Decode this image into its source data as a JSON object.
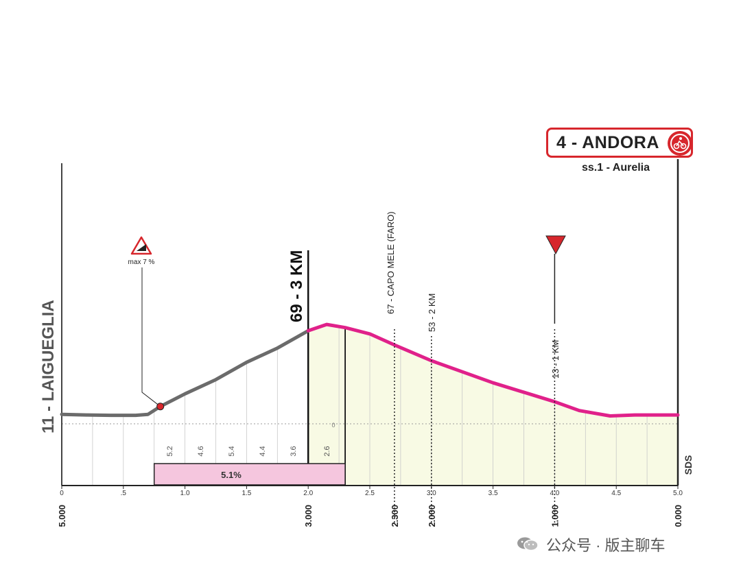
{
  "start_label": "11 - LAIGUEGLIA",
  "finish": {
    "label": "4 - ANDORA",
    "road": "ss.1 - Aurelia",
    "icon": "cyclist-finish-icon",
    "color": "#d7262c"
  },
  "warning": {
    "icon": "steep-climb-warning-icon",
    "label": "max 7 %"
  },
  "markers": {
    "km3": "69 - 3 KM",
    "capo_mele": "67 - CAPO MELE (FARO)",
    "km2": "53 - 2 KM",
    "km1": "13 - 1 KM"
  },
  "sea_level": "0",
  "logo": "SDS",
  "watermark": "公众号 · 版主聊车",
  "colors": {
    "profile_before": "#6b6b6b",
    "profile_final": "#e0218a",
    "fill_final": "#f8fae4",
    "grade_bar": "#f5c6de"
  },
  "chart_data": {
    "type": "area",
    "x_ticks": [
      "0",
      ".5",
      "1.0",
      "1.5",
      "2.0",
      "2.5",
      "3.0",
      "3.5",
      "4.0",
      "4.5",
      "5.0"
    ],
    "distance_to_go": [
      {
        "at": 0,
        "label": "5.000"
      },
      {
        "at": 2.0,
        "label": "3.000"
      },
      {
        "at": 2.7,
        "label": "2.300"
      },
      {
        "at": 3.0,
        "label": "2.000"
      },
      {
        "at": 4.0,
        "label": "1.000"
      },
      {
        "at": 5.0,
        "label": "0.000"
      }
    ],
    "segment_grades": [
      {
        "from": 0.75,
        "to": 1.0,
        "grade": "5.2"
      },
      {
        "from": 1.0,
        "to": 1.25,
        "grade": "4.6"
      },
      {
        "from": 1.25,
        "to": 1.5,
        "grade": "5.4"
      },
      {
        "from": 1.5,
        "to": 1.75,
        "grade": "4.4"
      },
      {
        "from": 1.75,
        "to": 2.0,
        "grade": "3.6"
      },
      {
        "from": 2.0,
        "to": 2.3,
        "grade": "2.6"
      }
    ],
    "climb": {
      "from": 0.75,
      "to": 2.3,
      "avg_grade": "5.1%"
    },
    "profile": [
      [
        0,
        0.3
      ],
      [
        0.2,
        0.28
      ],
      [
        0.4,
        0.27
      ],
      [
        0.6,
        0.27
      ],
      [
        0.7,
        0.3
      ],
      [
        0.8,
        0.55
      ],
      [
        1.0,
        0.95
      ],
      [
        1.25,
        1.4
      ],
      [
        1.5,
        1.95
      ],
      [
        1.75,
        2.4
      ],
      [
        2.0,
        2.95
      ],
      [
        2.15,
        3.15
      ],
      [
        2.3,
        3.05
      ],
      [
        2.5,
        2.85
      ],
      [
        2.7,
        2.5
      ],
      [
        3.0,
        2.0
      ],
      [
        3.5,
        1.3
      ],
      [
        4.0,
        0.7
      ],
      [
        4.2,
        0.42
      ],
      [
        4.45,
        0.25
      ],
      [
        4.65,
        0.28
      ],
      [
        5.0,
        0.28
      ]
    ],
    "max_grade_at": 0.8,
    "xlim": [
      0,
      5
    ],
    "ylim": [
      0,
      5
    ]
  }
}
